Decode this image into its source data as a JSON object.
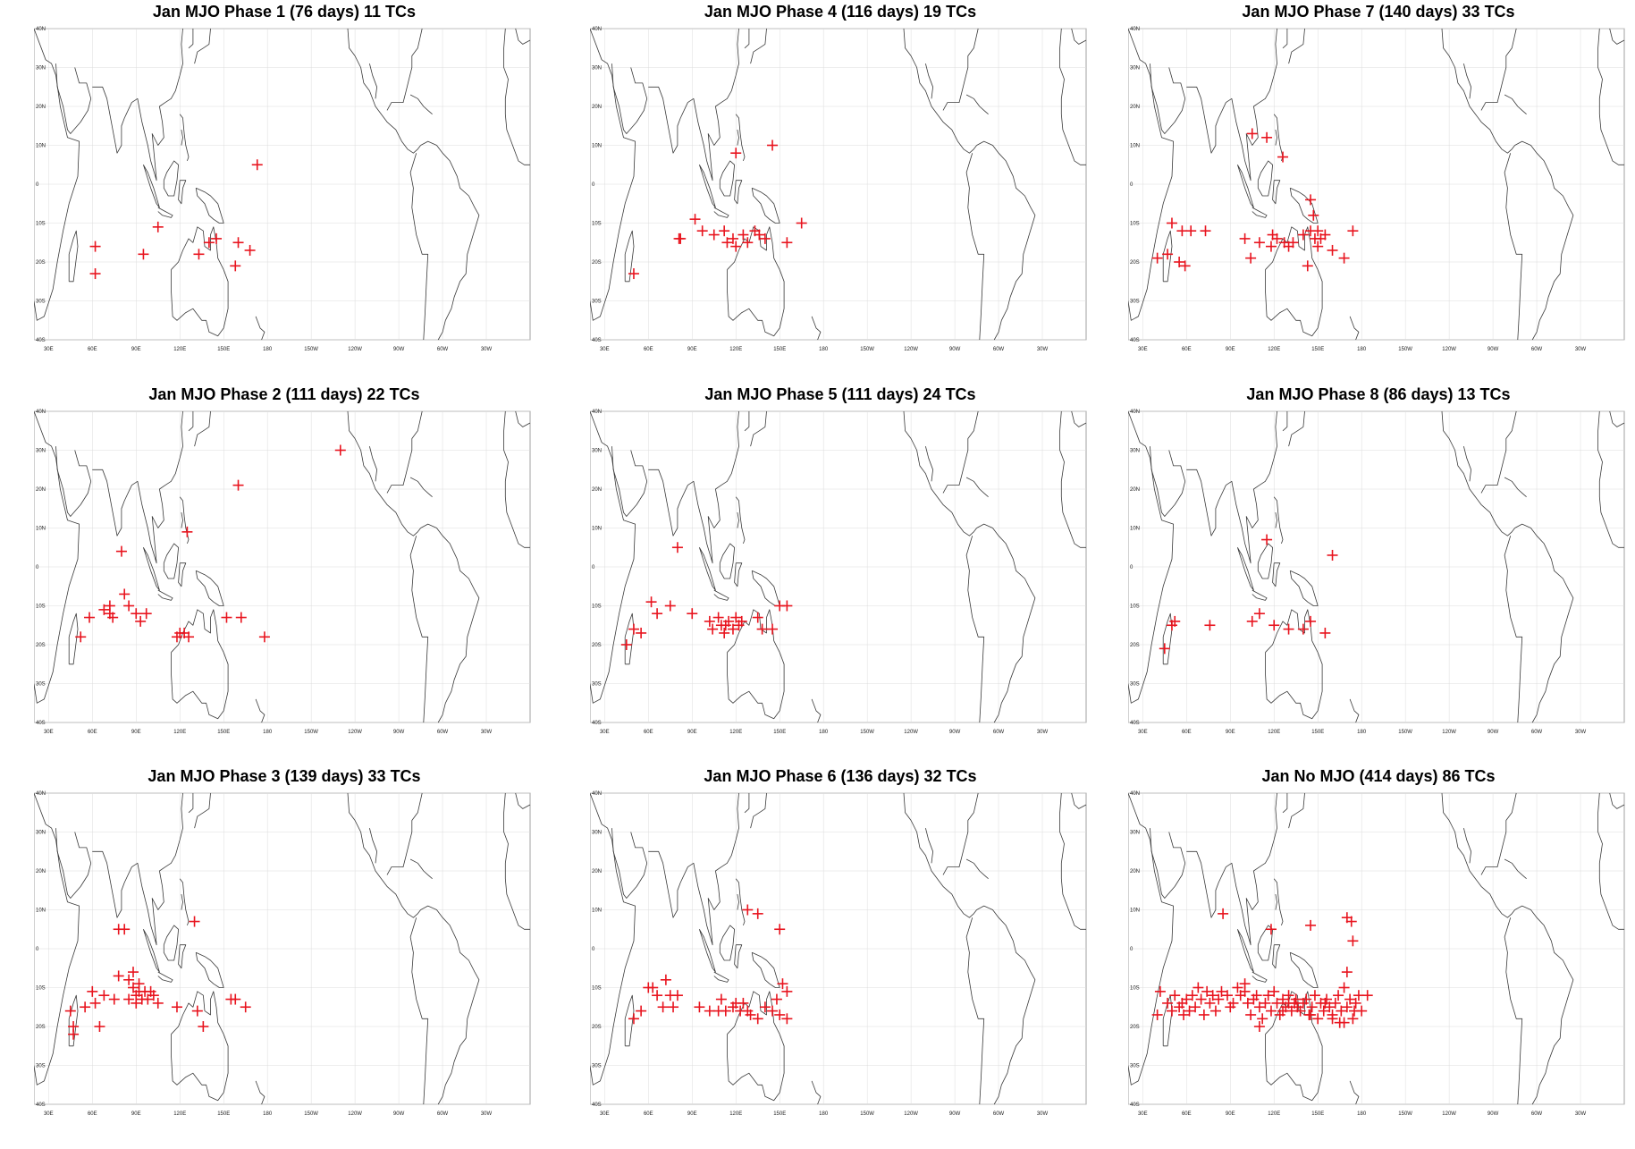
{
  "figure": {
    "panels": [
      {
        "id": "p1",
        "title": "Jan MJO Phase 1 (76 days) 11 TCs",
        "tcs": [
          [
            62,
            -16
          ],
          [
            62,
            -23
          ],
          [
            95,
            -18
          ],
          [
            105,
            -11
          ],
          [
            133,
            -18
          ],
          [
            140,
            -15
          ],
          [
            145,
            -14
          ],
          [
            160,
            -15
          ],
          [
            168,
            -17
          ],
          [
            158,
            -21
          ],
          [
            173,
            5
          ]
        ]
      },
      {
        "id": "p4",
        "title": "Jan MJO Phase 4 (116 days) 19 TCs",
        "tcs": [
          [
            50,
            -23
          ],
          [
            82,
            -14
          ],
          [
            92,
            -9
          ],
          [
            97,
            -12
          ],
          [
            105,
            -13
          ],
          [
            112,
            -12
          ],
          [
            118,
            -14
          ],
          [
            120,
            -16
          ],
          [
            125,
            -13
          ],
          [
            128,
            -15
          ],
          [
            133,
            -12
          ],
          [
            136,
            -13
          ],
          [
            140,
            -14
          ],
          [
            155,
            -15
          ],
          [
            165,
            -10
          ],
          [
            120,
            8
          ],
          [
            145,
            10
          ],
          [
            81,
            -14
          ],
          [
            114,
            -15
          ]
        ]
      },
      {
        "id": "p7",
        "title": "Jan MJO Phase 7 (140 days) 33 TCs",
        "tcs": [
          [
            40,
            -19
          ],
          [
            47,
            -18
          ],
          [
            50,
            -10
          ],
          [
            55,
            -20
          ],
          [
            57,
            -12
          ],
          [
            59,
            -21
          ],
          [
            63,
            -12
          ],
          [
            73,
            -12
          ],
          [
            100,
            -14
          ],
          [
            104,
            -19
          ],
          [
            105,
            13
          ],
          [
            115,
            12
          ],
          [
            126,
            7
          ],
          [
            110,
            -15
          ],
          [
            118,
            -16
          ],
          [
            122,
            -14
          ],
          [
            127,
            -15
          ],
          [
            133,
            -15
          ],
          [
            140,
            -13
          ],
          [
            145,
            -12
          ],
          [
            148,
            -14
          ],
          [
            150,
            -16
          ],
          [
            155,
            -13
          ],
          [
            160,
            -17
          ],
          [
            168,
            -19
          ],
          [
            174,
            -12
          ],
          [
            145,
            -4
          ],
          [
            147,
            -8
          ],
          [
            150,
            -12
          ],
          [
            143,
            -21
          ],
          [
            152,
            -14
          ],
          [
            130,
            -16
          ],
          [
            119,
            -13
          ]
        ]
      },
      {
        "id": "p2",
        "title": "Jan MJO Phase 2 (111 days) 22 TCs",
        "tcs": [
          [
            52,
            -18
          ],
          [
            58,
            -13
          ],
          [
            68,
            -11
          ],
          [
            72,
            -12
          ],
          [
            74,
            -13
          ],
          [
            80,
            4
          ],
          [
            82,
            -7
          ],
          [
            85,
            -10
          ],
          [
            90,
            -12
          ],
          [
            93,
            -14
          ],
          [
            97,
            -12
          ],
          [
            118,
            -18
          ],
          [
            120,
            -17
          ],
          [
            123,
            -17
          ],
          [
            126,
            -18
          ],
          [
            125,
            9
          ],
          [
            152,
            -13
          ],
          [
            162,
            -13
          ],
          [
            178,
            -18
          ],
          [
            160,
            21
          ],
          [
            230,
            30
          ],
          [
            72,
            -10
          ]
        ]
      },
      {
        "id": "p5",
        "title": "Jan MJO Phase 5 (111 days) 24 TCs",
        "tcs": [
          [
            45,
            -20
          ],
          [
            50,
            -16
          ],
          [
            55,
            -17
          ],
          [
            62,
            -9
          ],
          [
            66,
            -12
          ],
          [
            75,
            -10
          ],
          [
            90,
            -12
          ],
          [
            102,
            -14
          ],
          [
            104,
            -16
          ],
          [
            108,
            -13
          ],
          [
            110,
            -15
          ],
          [
            112,
            -17
          ],
          [
            113,
            -15
          ],
          [
            115,
            -14
          ],
          [
            118,
            -16
          ],
          [
            120,
            -13
          ],
          [
            122,
            -15
          ],
          [
            124,
            -14
          ],
          [
            135,
            -13
          ],
          [
            138,
            -16
          ],
          [
            145,
            -16
          ],
          [
            150,
            -10
          ],
          [
            155,
            -10
          ],
          [
            80,
            5
          ]
        ]
      },
      {
        "id": "p8",
        "title": "Jan MJO Phase 8 (86 days) 13 TCs",
        "tcs": [
          [
            45,
            -21
          ],
          [
            50,
            -15
          ],
          [
            52,
            -14
          ],
          [
            76,
            -15
          ],
          [
            105,
            -14
          ],
          [
            110,
            -12
          ],
          [
            115,
            7
          ],
          [
            120,
            -15
          ],
          [
            130,
            -16
          ],
          [
            140,
            -16
          ],
          [
            145,
            -14
          ],
          [
            155,
            -17
          ],
          [
            160,
            3
          ]
        ]
      },
      {
        "id": "p3",
        "title": "Jan MJO Phase 3 (139 days) 33 TCs",
        "tcs": [
          [
            45,
            -16
          ],
          [
            47,
            -20
          ],
          [
            47,
            -22
          ],
          [
            55,
            -15
          ],
          [
            60,
            -11
          ],
          [
            62,
            -14
          ],
          [
            65,
            -20
          ],
          [
            68,
            -12
          ],
          [
            75,
            -13
          ],
          [
            78,
            5
          ],
          [
            82,
            5
          ],
          [
            78,
            -7
          ],
          [
            85,
            -8
          ],
          [
            88,
            -6
          ],
          [
            88,
            -10
          ],
          [
            90,
            -12
          ],
          [
            92,
            -9
          ],
          [
            94,
            -13
          ],
          [
            96,
            -11
          ],
          [
            98,
            -13
          ],
          [
            100,
            -11
          ],
          [
            102,
            -12
          ],
          [
            105,
            -14
          ],
          [
            85,
            -13
          ],
          [
            90,
            -14
          ],
          [
            118,
            -15
          ],
          [
            132,
            -16
          ],
          [
            136,
            -20
          ],
          [
            130,
            7
          ],
          [
            155,
            -13
          ],
          [
            158,
            -13
          ],
          [
            165,
            -15
          ],
          [
            92,
            -11
          ]
        ]
      },
      {
        "id": "p6",
        "title": "Jan MJO Phase 6 (136 days) 32 TCs",
        "tcs": [
          [
            50,
            -18
          ],
          [
            55,
            -16
          ],
          [
            60,
            -10
          ],
          [
            63,
            -10
          ],
          [
            66,
            -12
          ],
          [
            70,
            -15
          ],
          [
            72,
            -8
          ],
          [
            75,
            -12
          ],
          [
            77,
            -15
          ],
          [
            80,
            -12
          ],
          [
            95,
            -15
          ],
          [
            102,
            -16
          ],
          [
            108,
            -16
          ],
          [
            110,
            -13
          ],
          [
            113,
            -16
          ],
          [
            118,
            -15
          ],
          [
            120,
            -14
          ],
          [
            123,
            -16
          ],
          [
            125,
            -14
          ],
          [
            128,
            -16
          ],
          [
            130,
            -17
          ],
          [
            135,
            -18
          ],
          [
            140,
            -15
          ],
          [
            145,
            -16
          ],
          [
            148,
            -13
          ],
          [
            150,
            -17
          ],
          [
            152,
            -9
          ],
          [
            155,
            -11
          ],
          [
            155,
            -18
          ],
          [
            128,
            10
          ],
          [
            135,
            9
          ],
          [
            150,
            5
          ]
        ]
      },
      {
        "id": "p9",
        "title": "Jan No MJO (414 days) 86 TCs",
        "tcs": [
          [
            40,
            -17
          ],
          [
            42,
            -11
          ],
          [
            47,
            -14
          ],
          [
            50,
            -16
          ],
          [
            52,
            -12
          ],
          [
            55,
            -15
          ],
          [
            57,
            -14
          ],
          [
            58,
            -17
          ],
          [
            60,
            -13
          ],
          [
            62,
            -16
          ],
          [
            64,
            -12
          ],
          [
            66,
            -15
          ],
          [
            68,
            -10
          ],
          [
            70,
            -13
          ],
          [
            72,
            -17
          ],
          [
            74,
            -11
          ],
          [
            76,
            -14
          ],
          [
            78,
            -12
          ],
          [
            80,
            -16
          ],
          [
            82,
            -13
          ],
          [
            84,
            -11
          ],
          [
            85,
            9
          ],
          [
            88,
            -12
          ],
          [
            90,
            -15
          ],
          [
            92,
            -14
          ],
          [
            95,
            -10
          ],
          [
            97,
            -12
          ],
          [
            100,
            -11
          ],
          [
            102,
            -14
          ],
          [
            104,
            -17
          ],
          [
            106,
            -13
          ],
          [
            108,
            -12
          ],
          [
            110,
            -15
          ],
          [
            112,
            -18
          ],
          [
            114,
            -14
          ],
          [
            116,
            -12
          ],
          [
            118,
            -16
          ],
          [
            120,
            -11
          ],
          [
            122,
            -14
          ],
          [
            124,
            -17
          ],
          [
            126,
            -13
          ],
          [
            128,
            -15
          ],
          [
            130,
            -12
          ],
          [
            132,
            -16
          ],
          [
            134,
            -14
          ],
          [
            136,
            -15
          ],
          [
            138,
            -16
          ],
          [
            140,
            -14
          ],
          [
            142,
            -13
          ],
          [
            144,
            -17
          ],
          [
            146,
            -15
          ],
          [
            148,
            -12
          ],
          [
            150,
            -18
          ],
          [
            152,
            -14
          ],
          [
            154,
            -16
          ],
          [
            156,
            -13
          ],
          [
            158,
            -15
          ],
          [
            160,
            -17
          ],
          [
            162,
            -14
          ],
          [
            164,
            -12
          ],
          [
            166,
            -16
          ],
          [
            168,
            -19
          ],
          [
            170,
            -15
          ],
          [
            172,
            -13
          ],
          [
            174,
            -18
          ],
          [
            176,
            -14
          ],
          [
            178,
            -12
          ],
          [
            180,
            -16
          ],
          [
            168,
            -10
          ],
          [
            170,
            -6
          ],
          [
            174,
            2
          ],
          [
            170,
            8
          ],
          [
            173,
            7
          ],
          [
            145,
            6
          ],
          [
            118,
            5
          ],
          [
            100,
            -9
          ],
          [
            110,
            -20
          ],
          [
            130,
            -14
          ],
          [
            135,
            -13
          ],
          [
            145,
            -17
          ],
          [
            155,
            -14
          ],
          [
            160,
            -18
          ],
          [
            165,
            -19
          ],
          [
            175,
            -16
          ],
          [
            184,
            -12
          ],
          [
            126,
            -16
          ]
        ]
      }
    ],
    "lon_labels": [
      "30E",
      "60E",
      "90E",
      "120E",
      "150E",
      "180",
      "150W",
      "120W",
      "90W",
      "60W",
      "30W"
    ],
    "lat_labels": [
      "40N",
      "30N",
      "20N",
      "10N",
      "0",
      "10S",
      "20S",
      "30S",
      "40S"
    ],
    "colors": {
      "tc_marker": "#e8141e",
      "coast": "#3a3a3a",
      "grid": "#dcdcdc",
      "frame": "#8a8a8a"
    }
  },
  "chart_data": {
    "type": "scatter",
    "xlim": [
      20,
      360
    ],
    "ylim": [
      -40,
      40
    ],
    "xtick_labels": [
      "30E",
      "60E",
      "90E",
      "120E",
      "150E",
      "180",
      "150W",
      "120W",
      "90W",
      "60W",
      "30W"
    ],
    "ytick_labels": [
      "40N",
      "30N",
      "20N",
      "10N",
      "0",
      "10S",
      "20S",
      "30S",
      "40S"
    ],
    "grid": true
  }
}
